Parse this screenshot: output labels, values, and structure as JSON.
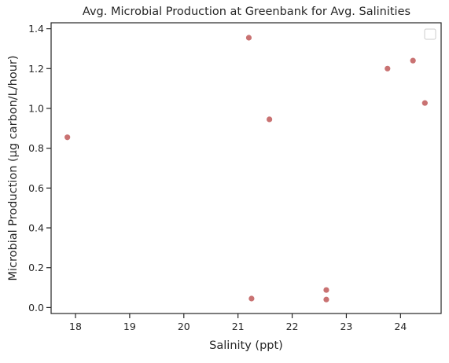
{
  "chart_data": {
    "type": "scatter",
    "title": "Avg. Microbial Production at Greenbank for Avg. Salinities",
    "xlabel": "Salinity (ppt)",
    "ylabel": "Microbial Production (µg carbon/L/hour)",
    "xlim": [
      17.55,
      24.75
    ],
    "ylim": [
      -0.03,
      1.43
    ],
    "xticks": [
      18,
      19,
      20,
      21,
      22,
      23,
      24
    ],
    "xtick_labels": [
      "18",
      "19",
      "20",
      "21",
      "22",
      "23",
      "24"
    ],
    "yticks": [
      0.0,
      0.2,
      0.4,
      0.6,
      0.8,
      1.0,
      1.2,
      1.4
    ],
    "ytick_labels": [
      "0.0",
      "0.2",
      "0.4",
      "0.6",
      "0.8",
      "1.0",
      "1.2",
      "1.4"
    ],
    "grid": false,
    "legend": {
      "placement": "top-right",
      "entries": []
    },
    "marker_color": "#c97272",
    "points": [
      {
        "x": 17.85,
        "y": 0.855
      },
      {
        "x": 21.2,
        "y": 1.355
      },
      {
        "x": 21.25,
        "y": 0.045
      },
      {
        "x": 21.58,
        "y": 0.945
      },
      {
        "x": 22.63,
        "y": 0.088
      },
      {
        "x": 22.63,
        "y": 0.04
      },
      {
        "x": 23.76,
        "y": 1.2
      },
      {
        "x": 24.23,
        "y": 1.24
      },
      {
        "x": 24.45,
        "y": 1.027
      }
    ]
  }
}
